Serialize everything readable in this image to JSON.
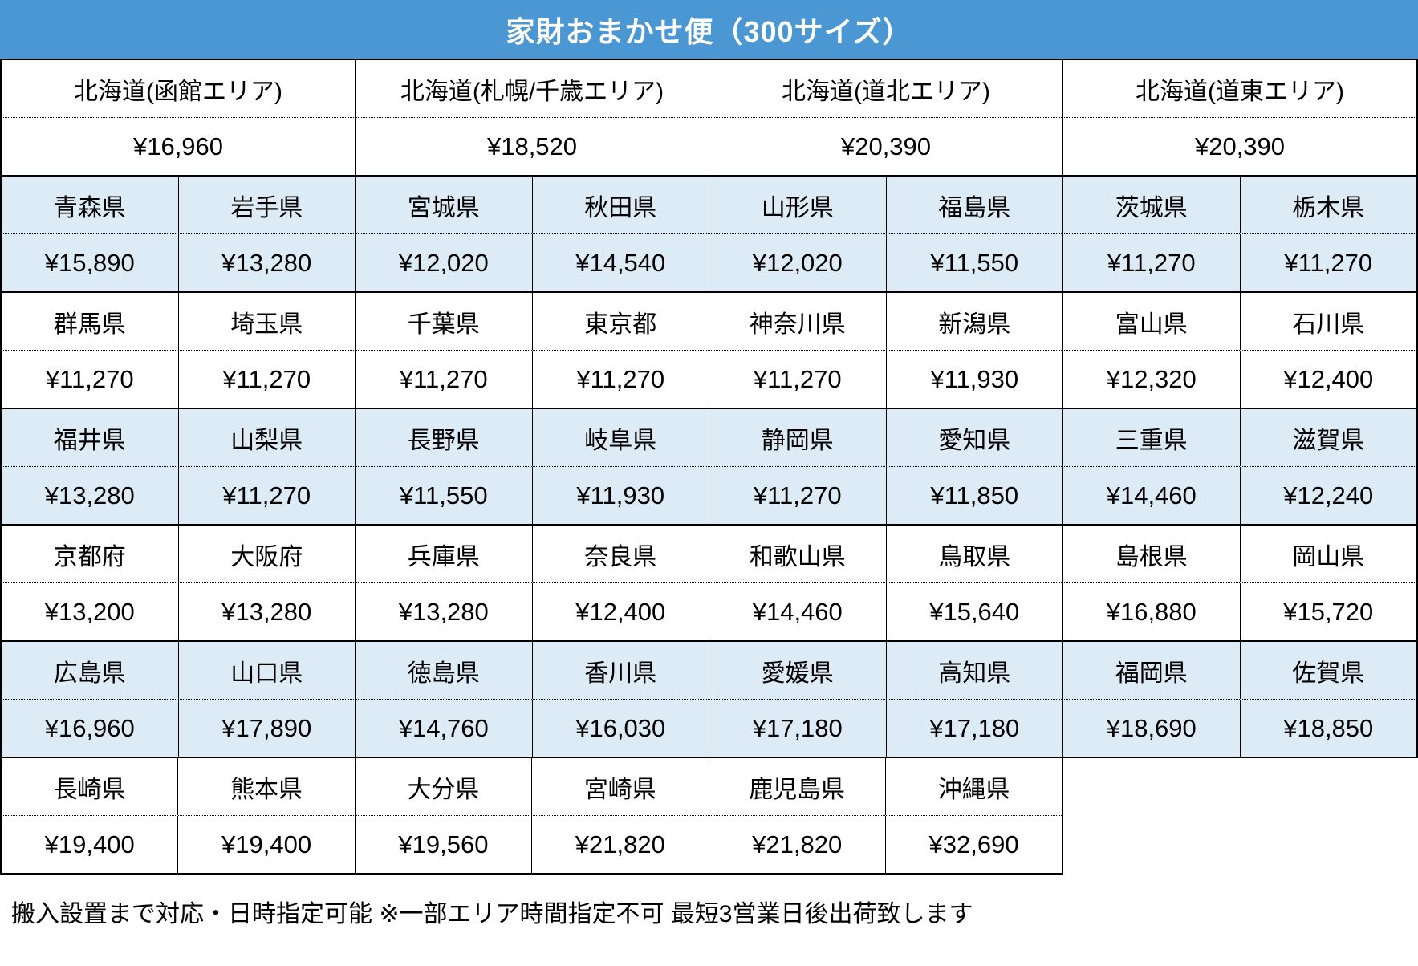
{
  "title": "家財おまかせ便（300サイズ）",
  "colors": {
    "title_bg": "#4b97d3",
    "title_text": "#ffffff",
    "shaded_row_bg": "#ddebf7",
    "border": "#000000"
  },
  "hokkaido": {
    "areas": [
      {
        "area": "北海道(函館エリア)",
        "price": "¥16,960"
      },
      {
        "area": "北海道(札幌/千歳エリア)",
        "price": "¥18,520"
      },
      {
        "area": "北海道(道北エリア)",
        "price": "¥20,390"
      },
      {
        "area": "北海道(道東エリア)",
        "price": "¥20,390"
      }
    ]
  },
  "prefecture_rows": [
    {
      "shaded": true,
      "cells": [
        {
          "name": "青森県",
          "price": "¥15,890"
        },
        {
          "name": "岩手県",
          "price": "¥13,280"
        },
        {
          "name": "宮城県",
          "price": "¥12,020"
        },
        {
          "name": "秋田県",
          "price": "¥14,540"
        },
        {
          "name": "山形県",
          "price": "¥12,020"
        },
        {
          "name": "福島県",
          "price": "¥11,550"
        },
        {
          "name": "茨城県",
          "price": "¥11,270"
        },
        {
          "name": "栃木県",
          "price": "¥11,270"
        }
      ]
    },
    {
      "shaded": false,
      "cells": [
        {
          "name": "群馬県",
          "price": "¥11,270"
        },
        {
          "name": "埼玉県",
          "price": "¥11,270"
        },
        {
          "name": "千葉県",
          "price": "¥11,270"
        },
        {
          "name": "東京都",
          "price": "¥11,270"
        },
        {
          "name": "神奈川県",
          "price": "¥11,270"
        },
        {
          "name": "新潟県",
          "price": "¥11,930"
        },
        {
          "name": "富山県",
          "price": "¥12,320"
        },
        {
          "name": "石川県",
          "price": "¥12,400"
        }
      ]
    },
    {
      "shaded": true,
      "cells": [
        {
          "name": "福井県",
          "price": "¥13,280"
        },
        {
          "name": "山梨県",
          "price": "¥11,270"
        },
        {
          "name": "長野県",
          "price": "¥11,550"
        },
        {
          "name": "岐阜県",
          "price": "¥11,930"
        },
        {
          "name": "静岡県",
          "price": "¥11,270"
        },
        {
          "name": "愛知県",
          "price": "¥11,850"
        },
        {
          "name": "三重県",
          "price": "¥14,460"
        },
        {
          "name": "滋賀県",
          "price": "¥12,240"
        }
      ]
    },
    {
      "shaded": false,
      "cells": [
        {
          "name": "京都府",
          "price": "¥13,200"
        },
        {
          "name": "大阪府",
          "price": "¥13,280"
        },
        {
          "name": "兵庫県",
          "price": "¥13,280"
        },
        {
          "name": "奈良県",
          "price": "¥12,400"
        },
        {
          "name": "和歌山県",
          "price": "¥14,460"
        },
        {
          "name": "鳥取県",
          "price": "¥15,640"
        },
        {
          "name": "島根県",
          "price": "¥16,880"
        },
        {
          "name": "岡山県",
          "price": "¥15,720"
        }
      ]
    },
    {
      "shaded": true,
      "cells": [
        {
          "name": "広島県",
          "price": "¥16,960"
        },
        {
          "name": "山口県",
          "price": "¥17,890"
        },
        {
          "name": "徳島県",
          "price": "¥14,760"
        },
        {
          "name": "香川県",
          "price": "¥16,030"
        },
        {
          "name": "愛媛県",
          "price": "¥17,180"
        },
        {
          "name": "高知県",
          "price": "¥17,180"
        },
        {
          "name": "福岡県",
          "price": "¥18,690"
        },
        {
          "name": "佐賀県",
          "price": "¥18,850"
        }
      ]
    },
    {
      "shaded": false,
      "cells": [
        {
          "name": "長崎県",
          "price": "¥19,400"
        },
        {
          "name": "熊本県",
          "price": "¥19,400"
        },
        {
          "name": "大分県",
          "price": "¥19,560"
        },
        {
          "name": "宮崎県",
          "price": "¥21,820"
        },
        {
          "name": "鹿児島県",
          "price": "¥21,820"
        },
        {
          "name": "沖縄県",
          "price": "¥32,690"
        }
      ]
    }
  ],
  "footnote": "搬入設置まで対応・日時指定可能 ※一部エリア時間指定不可 最短3営業日後出荷致します"
}
